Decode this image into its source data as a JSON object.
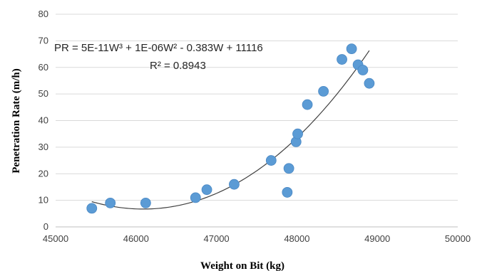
{
  "chart_data": {
    "type": "scatter",
    "title": "",
    "xlabel": "Weight on Bit (kg)",
    "ylabel": "Penetration Rate (m/h)",
    "xlim": [
      45000,
      50000
    ],
    "ylim": [
      0,
      80
    ],
    "x_ticks": [
      45000,
      46000,
      47000,
      48000,
      49000,
      50000
    ],
    "y_ticks": [
      0,
      10,
      20,
      30,
      40,
      50,
      60,
      70,
      80
    ],
    "x_tick_labels": [
      "45000",
      "46000",
      "47000",
      "48000",
      "49000",
      "50000"
    ],
    "y_tick_labels": [
      "0",
      "10",
      "20",
      "30",
      "40",
      "50",
      "60",
      "70",
      "80"
    ],
    "grid": "horizontal",
    "legend": "none",
    "marker_color": "#5B9BD5",
    "trendline_color": "#404040",
    "points": [
      {
        "x": 45450,
        "y": 7
      },
      {
        "x": 45680,
        "y": 9
      },
      {
        "x": 46120,
        "y": 9
      },
      {
        "x": 46740,
        "y": 11
      },
      {
        "x": 46880,
        "y": 14
      },
      {
        "x": 47220,
        "y": 16
      },
      {
        "x": 47680,
        "y": 25
      },
      {
        "x": 47880,
        "y": 13
      },
      {
        "x": 47900,
        "y": 22
      },
      {
        "x": 47990,
        "y": 32
      },
      {
        "x": 48010,
        "y": 35
      },
      {
        "x": 48130,
        "y": 46
      },
      {
        "x": 48330,
        "y": 51
      },
      {
        "x": 48560,
        "y": 63
      },
      {
        "x": 48680,
        "y": 67
      },
      {
        "x": 48760,
        "y": 61
      },
      {
        "x": 48820,
        "y": 59
      },
      {
        "x": 48900,
        "y": 54
      }
    ],
    "trendline": {
      "type": "polynomial",
      "equation": "PR = 5E-11W³ + 1E-06W² - 0.383W + 11116",
      "r_squared": "R² = 0.8943"
    }
  }
}
